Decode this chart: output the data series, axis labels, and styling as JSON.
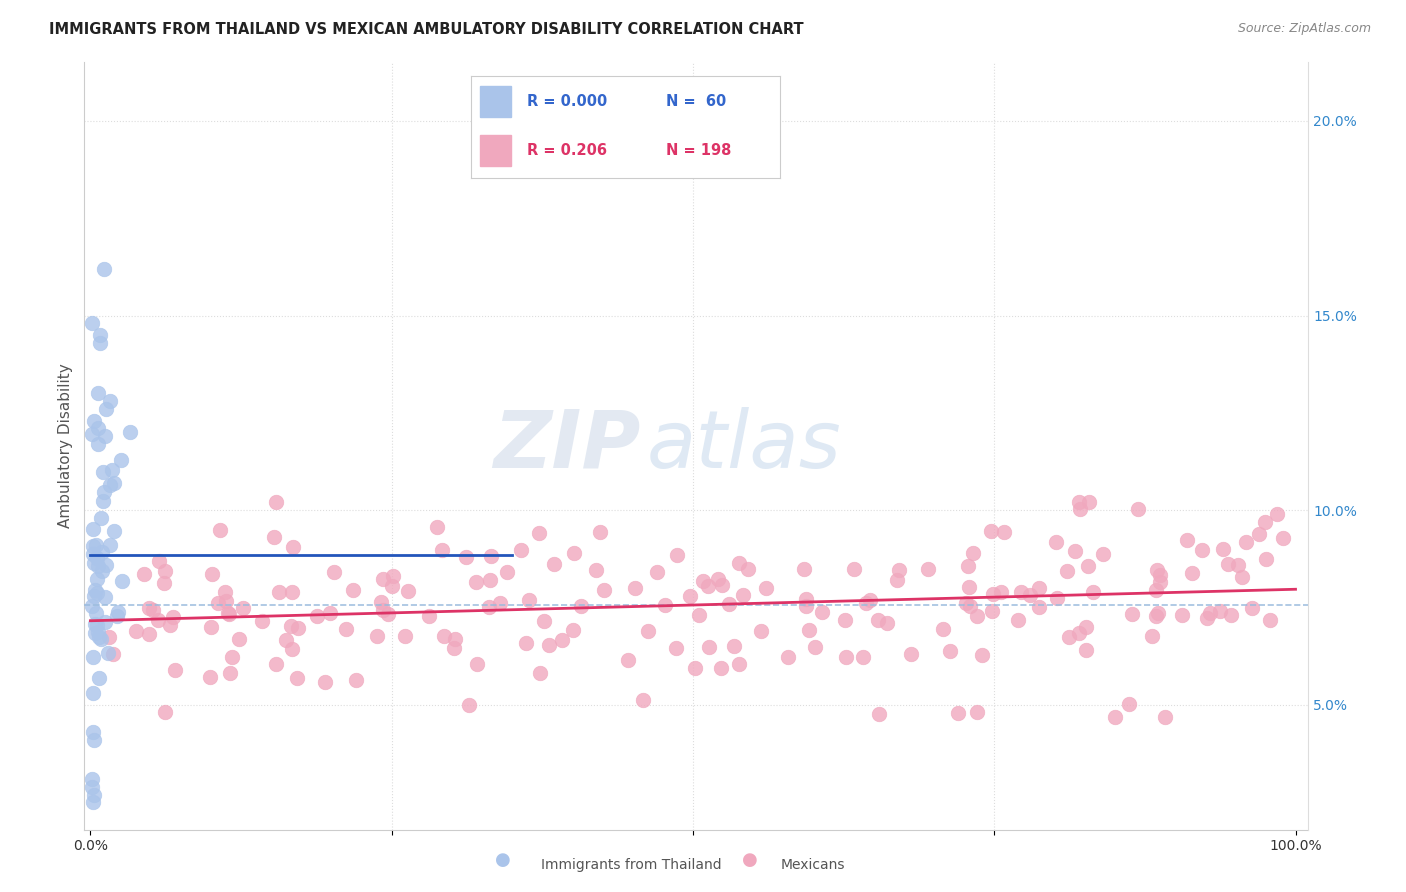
{
  "title": "IMMIGRANTS FROM THAILAND VS MEXICAN AMBULATORY DISABILITY CORRELATION CHART",
  "source": "Source: ZipAtlas.com",
  "ylabel": "Ambulatory Disability",
  "color_thailand": "#aac4ea",
  "color_mexico": "#f0a8be",
  "color_thailand_edge": "#aac4ea",
  "color_mexico_edge": "#f0a8be",
  "line_color_thailand": "#2255bb",
  "line_color_mexico": "#dd3366",
  "dashed_line_color": "#99bbdd",
  "right_yticks": [
    0.05,
    0.1,
    0.15,
    0.2
  ],
  "right_yticklabels": [
    "5.0%",
    "10.0%",
    "15.0%",
    "20.0%"
  ],
  "ylim": [
    0.018,
    0.215
  ],
  "xlim": [
    -0.005,
    1.01
  ],
  "grid_color": "#dddddd",
  "watermark_color": "#d0e4f4",
  "watermark_text": "ZIPatlas",
  "legend_r1": "R = 0.000",
  "legend_n1": "N =  60",
  "legend_r2": "R = 0.206",
  "legend_n2": "N = 198",
  "legend_color1": "#3366cc",
  "legend_color2": "#dd3366"
}
